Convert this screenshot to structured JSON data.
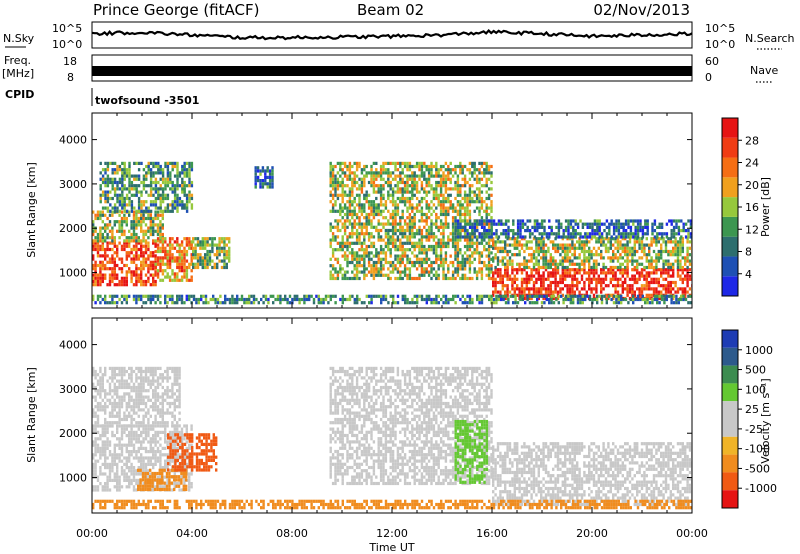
{
  "header": {
    "station": "Prince George (fitACF)",
    "beam": "Beam 02",
    "date": "02/Nov/2013"
  },
  "strips": {
    "nsky_label": "N.Sky",
    "nsearch_label": "N.Search",
    "nsky_ticks": [
      "10^5",
      "10^0"
    ],
    "freq_label_1": "Freq.",
    "freq_label_2": "[MHz]",
    "freq_ticks": [
      "18",
      "8"
    ],
    "nave_label": "Nave",
    "nave_ticks": [
      "60",
      "0"
    ],
    "cpid_label": "CPID",
    "cpid_value": "twofsound -3501"
  },
  "axes": {
    "ylabel": "Slant Range [km]",
    "xlabel": "Time UT",
    "yticks": [
      "1000",
      "2000",
      "3000",
      "4000"
    ],
    "xticks": [
      "00:00",
      "04:00",
      "08:00",
      "12:00",
      "16:00",
      "20:00",
      "00:00"
    ]
  },
  "colorbars": {
    "power": {
      "label": "Power [dB]",
      "ticks": [
        "4",
        "8",
        "12",
        "16",
        "20",
        "24",
        "28"
      ],
      "colors": [
        "#1e28e6",
        "#1e50b4",
        "#2d6e6e",
        "#3c9650",
        "#96c83c",
        "#f0a01e",
        "#f56e14",
        "#f03c14",
        "#e61414"
      ]
    },
    "velocity": {
      "label": "Velocity [m s⁻¹]",
      "ticks": [
        "1000",
        "500",
        "100",
        "25",
        "-25",
        "-100",
        "-500",
        "-1000"
      ],
      "colors": [
        "#1e3cb4",
        "#2d5a8c",
        "#3c8c50",
        "#64c832",
        "#c8c8c8",
        "#c8c8c8",
        "#f0b428",
        "#f08c1e",
        "#f05a14",
        "#e61414"
      ]
    }
  },
  "chart_data": [
    {
      "type": "heatmap",
      "name": "power",
      "xlabel": "Time UT",
      "ylabel": "Slant Range [km]",
      "xlim": [
        0,
        24
      ],
      "ylim": [
        200,
        4600
      ],
      "grid": false,
      "regions": [
        {
          "t": [
            0.0,
            2.5
          ],
          "r": [
            700,
            1700
          ],
          "value": 26
        },
        {
          "t": [
            0.0,
            2.8
          ],
          "r": [
            1700,
            2400
          ],
          "value": 16
        },
        {
          "t": [
            0.3,
            4.0
          ],
          "r": [
            2400,
            3500
          ],
          "value": 12
        },
        {
          "t": [
            2.5,
            4.0
          ],
          "r": [
            800,
            1800
          ],
          "value": 22
        },
        {
          "t": [
            4.0,
            5.5
          ],
          "r": [
            1100,
            1800
          ],
          "value": 14
        },
        {
          "t": [
            6.5,
            7.2
          ],
          "r": [
            2900,
            3400
          ],
          "value": 8
        },
        {
          "t": [
            9.5,
            16.0
          ],
          "r": [
            900,
            3500
          ],
          "value": 16
        },
        {
          "t": [
            16.0,
            24.0
          ],
          "r": [
            400,
            1100
          ],
          "value": 28
        },
        {
          "t": [
            16.0,
            24.0
          ],
          "r": [
            1100,
            1800
          ],
          "value": 16
        },
        {
          "t": [
            14.5,
            24.0
          ],
          "r": [
            1800,
            2200
          ],
          "value": 8
        },
        {
          "t": [
            0.0,
            24.0
          ],
          "r": [
            300,
            500
          ],
          "value": 10
        }
      ]
    },
    {
      "type": "heatmap",
      "name": "velocity",
      "xlabel": "Time UT",
      "ylabel": "Slant Range [km]",
      "xlim": [
        0,
        24
      ],
      "ylim": [
        200,
        4600
      ],
      "grid": false,
      "regions": [
        {
          "t": [
            0.0,
            4.0
          ],
          "r": [
            700,
            2200
          ],
          "value": 0
        },
        {
          "t": [
            1.8,
            3.8
          ],
          "r": [
            700,
            1200
          ],
          "value": -150
        },
        {
          "t": [
            3.0,
            5.0
          ],
          "r": [
            1200,
            2000
          ],
          "value": -600
        },
        {
          "t": [
            0.0,
            3.5
          ],
          "r": [
            2200,
            3500
          ],
          "value": 0
        },
        {
          "t": [
            9.5,
            16.0
          ],
          "r": [
            900,
            3500
          ],
          "value": 0
        },
        {
          "t": [
            14.5,
            15.8
          ],
          "r": [
            900,
            2300
          ],
          "value": 100
        },
        {
          "t": [
            16.0,
            24.0
          ],
          "r": [
            400,
            1800
          ],
          "value": 0
        },
        {
          "t": [
            0.0,
            24.0
          ],
          "r": [
            300,
            500
          ],
          "value": -100
        }
      ]
    },
    {
      "type": "line",
      "name": "N.Sky",
      "xlim": [
        0,
        24
      ],
      "ylabel": "N.Sky",
      "x": [
        0,
        2,
        4,
        6,
        8,
        10,
        12,
        14,
        16,
        18,
        20,
        22,
        24
      ],
      "y": [
        0.55,
        0.6,
        0.5,
        0.4,
        0.4,
        0.42,
        0.45,
        0.5,
        0.62,
        0.55,
        0.45,
        0.5,
        0.55
      ]
    },
    {
      "type": "bar",
      "name": "Freq",
      "xlim": [
        0,
        24
      ],
      "ylim": [
        8,
        18
      ],
      "ylabel": "Freq. [MHz]",
      "x": [
        0,
        24
      ],
      "y": [
        12,
        12
      ]
    }
  ]
}
